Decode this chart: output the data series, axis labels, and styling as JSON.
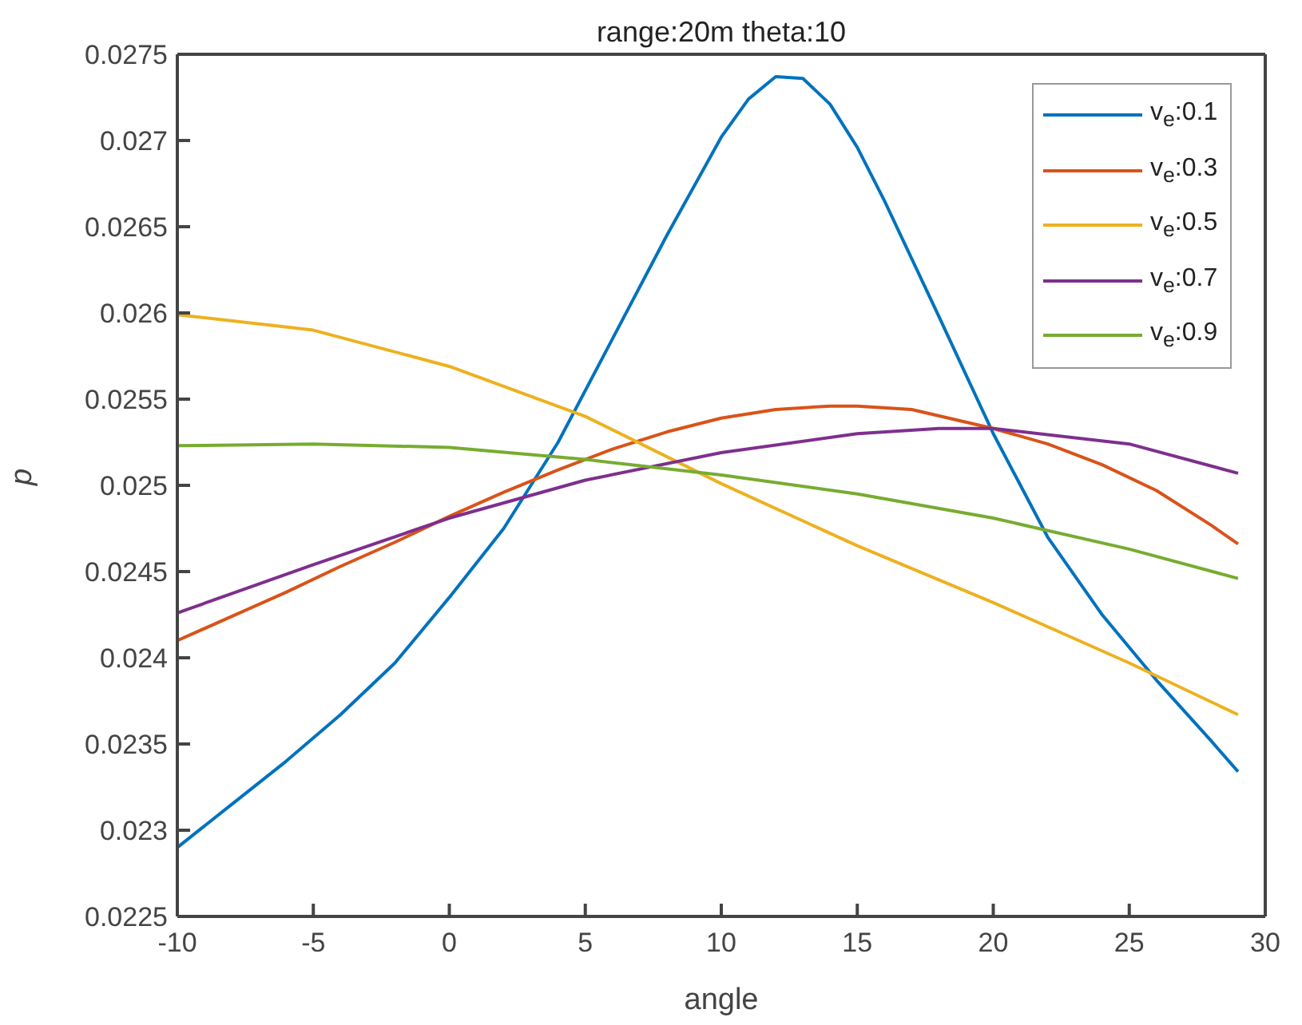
{
  "chart_data": {
    "type": "line",
    "title": "range:20m theta:10",
    "xlabel": "angle",
    "ylabel": "p",
    "xlim": [
      -10,
      30
    ],
    "xticks": [
      -10,
      -5,
      0,
      5,
      10,
      15,
      20,
      25,
      30
    ],
    "ylim": [
      0.0225,
      0.0275
    ],
    "yticks": [
      0.0225,
      0.023,
      0.0235,
      0.024,
      0.0245,
      0.025,
      0.0255,
      0.026,
      0.0265,
      0.027,
      0.0275
    ],
    "legend": "top right",
    "marker": "none",
    "line_style": "solid",
    "series": [
      {
        "name": "v$_{e}$:0.1",
        "color": "#0072bd",
        "x": [
          -10,
          -8,
          -6,
          -4,
          -2,
          0,
          2,
          4,
          6,
          8,
          10,
          11,
          12,
          13,
          14,
          15,
          16,
          18,
          20,
          22,
          24,
          26,
          28,
          29
        ],
        "values": [
          0.0229,
          0.02315,
          0.0234,
          0.02367,
          0.02397,
          0.02435,
          0.02475,
          0.02525,
          0.02585,
          0.02645,
          0.02702,
          0.02724,
          0.02737,
          0.02736,
          0.02721,
          0.02696,
          0.02665,
          0.02598,
          0.0253,
          0.0247,
          0.02425,
          0.02387,
          0.02352,
          0.02334
        ]
      },
      {
        "name": "v$_{e}$:0.3",
        "color": "#d95319",
        "x": [
          -10,
          -8,
          -6,
          -4,
          -2,
          0,
          2,
          4,
          6,
          8,
          10,
          12,
          14,
          15,
          17,
          20,
          22,
          24,
          26,
          28,
          29
        ],
        "values": [
          0.0241,
          0.02424,
          0.02438,
          0.02453,
          0.02467,
          0.02482,
          0.02496,
          0.02509,
          0.02521,
          0.02531,
          0.02539,
          0.02544,
          0.02546,
          0.02546,
          0.02544,
          0.02533,
          0.02524,
          0.02512,
          0.02497,
          0.02477,
          0.02466
        ]
      },
      {
        "name": "v$_{e}$:0.5",
        "color": "#edb120",
        "x": [
          -10,
          -5,
          0,
          5,
          10,
          15,
          20,
          25,
          29
        ],
        "values": [
          0.02599,
          0.0259,
          0.02569,
          0.0254,
          0.02501,
          0.02465,
          0.02432,
          0.02397,
          0.02367
        ]
      },
      {
        "name": "v$_{e}$:0.7",
        "color": "#7e2f8e",
        "x": [
          -10,
          -5,
          0,
          5,
          10,
          15,
          18,
          20,
          25,
          29
        ],
        "values": [
          0.02426,
          0.02454,
          0.02481,
          0.02503,
          0.02519,
          0.0253,
          0.02533,
          0.02533,
          0.02524,
          0.02507
        ]
      },
      {
        "name": "v$_{e}$:0.9",
        "color": "#77ac30",
        "x": [
          -10,
          -5,
          0,
          5,
          10,
          15,
          20,
          25,
          29
        ],
        "values": [
          0.02523,
          0.02524,
          0.02522,
          0.02515,
          0.02506,
          0.02495,
          0.02481,
          0.02463,
          0.02446
        ]
      }
    ]
  }
}
